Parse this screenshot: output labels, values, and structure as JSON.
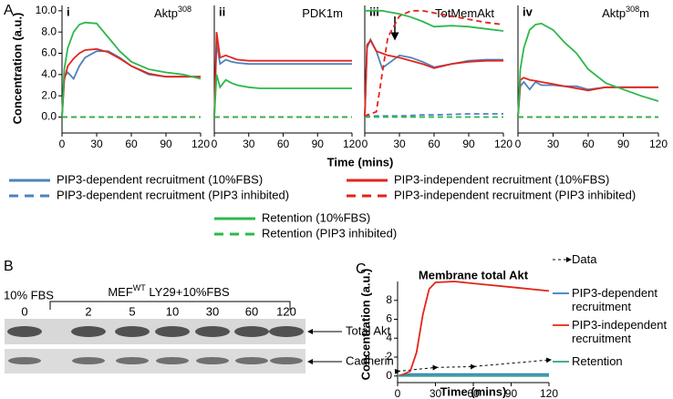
{
  "figure": {
    "panel_labels": [
      "A",
      "B",
      "C"
    ]
  },
  "blot": {
    "control_label": "10% FBS",
    "treatment_prefix": "MEF",
    "treatment_sup": "WT",
    "treatment_suffix": " LY29+10%FBS",
    "lanes": [
      "0",
      "2",
      "5",
      "10",
      "30",
      "60",
      "120"
    ],
    "bands": [
      "Total Akt",
      "Cadherin"
    ]
  },
  "chart_data": [
    {
      "type": "line",
      "panel": "i",
      "title_parts": [
        {
          "text": "Aktp"
        },
        {
          "text": "308",
          "sup": true
        }
      ],
      "ylabel": "Concentration (a.u.)",
      "xlabel": "Time (mins)",
      "legend": "below",
      "x": [
        0,
        2,
        5,
        10,
        15,
        20,
        30,
        40,
        50,
        60,
        75,
        90,
        105,
        120
      ],
      "xlim": [
        0,
        120
      ],
      "xticks": [
        0,
        30,
        60,
        90,
        120
      ],
      "ylim": [
        -1.5,
        10.5
      ],
      "yticks": [
        {
          "value": 0,
          "label": "0.0"
        },
        {
          "value": 2,
          "label": "2.0"
        },
        {
          "value": 4,
          "label": "4.0"
        },
        {
          "value": 6,
          "label": "6.0"
        },
        {
          "value": 8,
          "label": "8.0"
        },
        {
          "value": 10,
          "label": "10.0"
        }
      ],
      "series": [
        {
          "name": "PIP3-dependent recruitment (10%FBS)",
          "color": "#4f81bd",
          "dash": false,
          "values": [
            0,
            3.8,
            4.2,
            3.6,
            4.8,
            5.6,
            6.2,
            6.2,
            5.6,
            4.8,
            4.0,
            3.8,
            3.8,
            3.8
          ]
        },
        {
          "name": "PIP3-independent recruitment (10%FBS)",
          "color": "#e3241b",
          "dash": false,
          "values": [
            0,
            3.5,
            4.8,
            5.5,
            6.0,
            6.3,
            6.4,
            6.1,
            5.5,
            4.8,
            4.1,
            3.8,
            3.8,
            3.8
          ]
        },
        {
          "name": "PIP3-dependent recruitment (PIP3 inhibited)",
          "color": "#4f81bd",
          "dash": true,
          "values": [
            0,
            0,
            0,
            0,
            0,
            0,
            0,
            0,
            0,
            0,
            0,
            0,
            0,
            0
          ]
        },
        {
          "name": "PIP3-independent recruitment (PIP3 inhibited)",
          "color": "#e3241b",
          "dash": true,
          "values": [
            0,
            0,
            0,
            0,
            0,
            0,
            0,
            0,
            0,
            0,
            0,
            0,
            0,
            0
          ]
        },
        {
          "name": "Retention (10%FBS)",
          "color": "#2db84b",
          "dash": false,
          "values": [
            0,
            4.5,
            6.5,
            8.0,
            8.7,
            8.9,
            8.8,
            7.5,
            6.2,
            5.2,
            4.5,
            4.2,
            4.0,
            3.6
          ]
        },
        {
          "name": "Retention (PIP3 inhibited)",
          "color": "#2db84b",
          "dash": true,
          "values": [
            0,
            0,
            0,
            0,
            0,
            0,
            0,
            0,
            0,
            0,
            0,
            0,
            0,
            0
          ]
        }
      ]
    },
    {
      "type": "line",
      "panel": "ii",
      "title_parts": [
        {
          "text": "PDK1m"
        }
      ],
      "x": [
        0,
        2,
        5,
        10,
        15,
        20,
        30,
        40,
        50,
        60,
        75,
        90,
        105,
        120
      ],
      "xlim": [
        0,
        120
      ],
      "xticks": [
        0,
        30,
        60,
        90,
        120
      ],
      "ylim": [
        -1.5,
        10.5
      ],
      "series": [
        {
          "color": "#4f81bd",
          "dash": false,
          "values": [
            0,
            7.0,
            5.0,
            5.4,
            5.2,
            5.1,
            5.0,
            5.0,
            5.0,
            5.0,
            5.0,
            5.0,
            5.0,
            5.0
          ]
        },
        {
          "color": "#e3241b",
          "dash": false,
          "values": [
            0,
            8.0,
            5.6,
            5.8,
            5.6,
            5.4,
            5.3,
            5.3,
            5.3,
            5.3,
            5.3,
            5.3,
            5.3,
            5.3
          ]
        },
        {
          "color": "#4f81bd",
          "dash": true,
          "values": [
            0,
            0,
            0,
            0,
            0,
            0,
            0,
            0,
            0,
            0,
            0,
            0,
            0,
            0
          ]
        },
        {
          "color": "#e3241b",
          "dash": true,
          "values": [
            0,
            0,
            0,
            0,
            0,
            0,
            0,
            0,
            0,
            0,
            0,
            0,
            0,
            0
          ]
        },
        {
          "color": "#2db84b",
          "dash": false,
          "values": [
            0,
            4.0,
            2.8,
            3.5,
            3.2,
            3.0,
            2.8,
            2.7,
            2.7,
            2.7,
            2.7,
            2.7,
            2.7,
            2.7
          ]
        },
        {
          "color": "#2db84b",
          "dash": true,
          "values": [
            0,
            0,
            0,
            0,
            0,
            0,
            0,
            0,
            0,
            0,
            0,
            0,
            0,
            0
          ]
        }
      ]
    },
    {
      "type": "line",
      "panel": "iii",
      "title_parts": [
        {
          "text": "TotMemAkt"
        }
      ],
      "x": [
        0,
        2,
        5,
        10,
        15,
        20,
        30,
        40,
        50,
        60,
        75,
        90,
        105,
        120
      ],
      "xlim": [
        0,
        120
      ],
      "xticks": [
        0,
        30,
        60,
        90,
        120
      ],
      "ylim": [
        -1.5,
        10.5
      ],
      "series": [
        {
          "color": "#4f81bd",
          "dash": false,
          "values": [
            0,
            6.5,
            7.3,
            6.2,
            4.6,
            5.0,
            5.8,
            5.6,
            5.2,
            4.7,
            5.0,
            5.3,
            5.4,
            5.4
          ]
        },
        {
          "color": "#e3241b",
          "dash": false,
          "values": [
            0,
            6.8,
            7.2,
            6.2,
            6.0,
            5.8,
            5.6,
            5.3,
            5.0,
            4.6,
            5.0,
            5.2,
            5.3,
            5.3
          ]
        },
        {
          "color": "#4f81bd",
          "dash": true,
          "values": [
            0,
            0.1,
            0.1,
            0.1,
            0.1,
            0.1,
            0.1,
            0.15,
            0.2,
            0.2,
            0.25,
            0.3,
            0.3,
            0.3
          ]
        },
        {
          "color": "#e3241b",
          "dash": true,
          "values": [
            0,
            0.2,
            0.3,
            0.5,
            4.0,
            7.5,
            9.5,
            10.0,
            10.0,
            9.8,
            9.5,
            9.2,
            8.9,
            8.7
          ]
        },
        {
          "color": "#2db84b",
          "dash": false,
          "values": [
            10.0,
            10.0,
            10.0,
            10.0,
            10.0,
            9.9,
            9.7,
            9.4,
            9.0,
            8.5,
            8.6,
            8.5,
            8.3,
            8.1
          ]
        },
        {
          "color": "#2db84b",
          "dash": true,
          "values": [
            0,
            0,
            0,
            0,
            0,
            0,
            0,
            0,
            0,
            0,
            0,
            0,
            0,
            0
          ]
        }
      ]
    },
    {
      "type": "line",
      "panel": "iv",
      "title_parts": [
        {
          "text": "Aktp"
        },
        {
          "text": "308",
          "sup": true
        },
        {
          "text": "m"
        }
      ],
      "x": [
        0,
        2,
        5,
        10,
        15,
        20,
        30,
        40,
        50,
        60,
        75,
        90,
        105,
        120
      ],
      "xlim": [
        0,
        120
      ],
      "xticks": [
        0,
        30,
        60,
        90,
        120
      ],
      "ylim": [
        -1.5,
        10.5
      ],
      "series": [
        {
          "color": "#4f81bd",
          "dash": false,
          "values": [
            0,
            2.9,
            3.3,
            2.6,
            3.3,
            3.0,
            3.0,
            2.9,
            2.9,
            2.6,
            2.8,
            2.8,
            2.8,
            2.8
          ]
        },
        {
          "color": "#e3241b",
          "dash": false,
          "values": [
            0,
            3.5,
            3.7,
            3.5,
            3.4,
            3.3,
            3.1,
            2.9,
            2.7,
            2.5,
            2.8,
            2.8,
            2.8,
            2.8
          ]
        },
        {
          "color": "#4f81bd",
          "dash": true,
          "values": [
            0,
            0,
            0,
            0,
            0,
            0,
            0,
            0,
            0,
            0,
            0,
            0,
            0,
            0
          ]
        },
        {
          "color": "#e3241b",
          "dash": true,
          "values": [
            0,
            0,
            0,
            0,
            0,
            0,
            0,
            0,
            0,
            0,
            0,
            0,
            0,
            0
          ]
        },
        {
          "color": "#2db84b",
          "dash": false,
          "values": [
            0,
            4.5,
            6.5,
            8.2,
            8.7,
            8.8,
            8.2,
            7.0,
            6.0,
            4.5,
            3.2,
            2.6,
            2.0,
            1.5
          ]
        },
        {
          "color": "#2db84b",
          "dash": true,
          "values": [
            0,
            0,
            0,
            0,
            0,
            0,
            0,
            0,
            0,
            0,
            0,
            0,
            0,
            0
          ]
        }
      ]
    },
    {
      "type": "line",
      "title": "Membrane total Akt",
      "ylabel": "Concentration (a.u.)",
      "xlabel": "Time (mins)",
      "legend": "right",
      "xlim": [
        0,
        120
      ],
      "xticks": [
        0,
        30,
        60,
        90,
        120
      ],
      "ylim": [
        -0.7,
        10
      ],
      "yticks": [
        0,
        2,
        4,
        6,
        8
      ],
      "series": [
        {
          "name": "Data",
          "color": "#000000",
          "dash": true,
          "markers": true,
          "x": [
            0,
            30,
            60,
            120
          ],
          "values": [
            0.5,
            0.9,
            1.0,
            1.7
          ]
        },
        {
          "name": "PIP3-dependent recruitment",
          "color": "#2f7ec1",
          "dash": false,
          "x": [
            0,
            10,
            20,
            30,
            60,
            90,
            120
          ],
          "values": [
            0,
            0.2,
            0.2,
            0.2,
            0.2,
            0.2,
            0.2
          ]
        },
        {
          "name": "PIP3-independent recruitment",
          "color": "#e3241b",
          "dash": false,
          "x": [
            0,
            5,
            10,
            15,
            20,
            25,
            30,
            45,
            60,
            90,
            120
          ],
          "values": [
            0,
            0.2,
            0.5,
            2.5,
            6.5,
            9.2,
            9.9,
            10,
            9.8,
            9.4,
            9.0
          ]
        },
        {
          "name": "Retention",
          "color": "#2ca089",
          "dash": false,
          "x": [
            0,
            30,
            60,
            90,
            120
          ],
          "values": [
            0,
            0,
            0,
            0,
            0
          ]
        }
      ]
    }
  ]
}
